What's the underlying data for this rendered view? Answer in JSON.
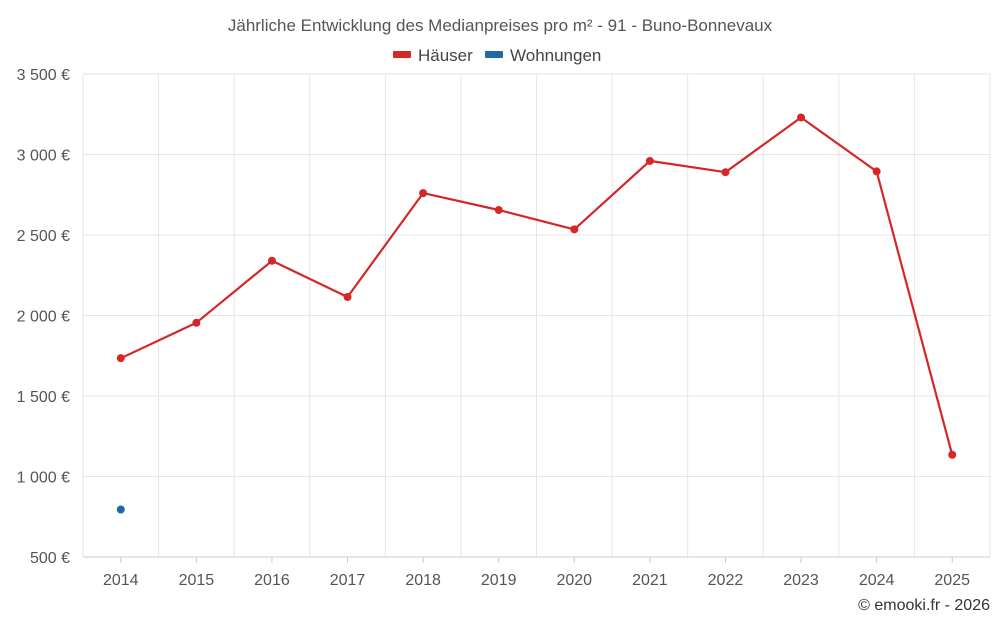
{
  "chart_data": {
    "type": "line",
    "title": "Jährliche Entwicklung des Medianpreises pro m² - 91 - Buno-Bonnevaux",
    "x": [
      "2014",
      "2015",
      "2016",
      "2017",
      "2018",
      "2019",
      "2020",
      "2021",
      "2022",
      "2023",
      "2024",
      "2025"
    ],
    "series": [
      {
        "name": "Häuser",
        "color": "#d62728",
        "values": [
          1735,
          1955,
          2340,
          2115,
          2760,
          2655,
          2535,
          2960,
          2890,
          3230,
          2895,
          1135
        ]
      },
      {
        "name": "Wohnungen",
        "color": "#1f6aa5",
        "values": [
          795,
          null,
          null,
          null,
          null,
          null,
          null,
          null,
          null,
          null,
          null,
          null
        ]
      }
    ],
    "ylim": [
      500,
      3500
    ],
    "yticks": [
      500,
      1000,
      1500,
      2000,
      2500,
      3000,
      3500
    ],
    "ytick_labels": [
      "500 €",
      "1 000 €",
      "1 500 €",
      "2 000 €",
      "2 500 €",
      "3 000 €",
      "3 500 €"
    ],
    "grid": true,
    "legend_position": "top-center"
  },
  "credit": "© emooki.fr - 2026"
}
